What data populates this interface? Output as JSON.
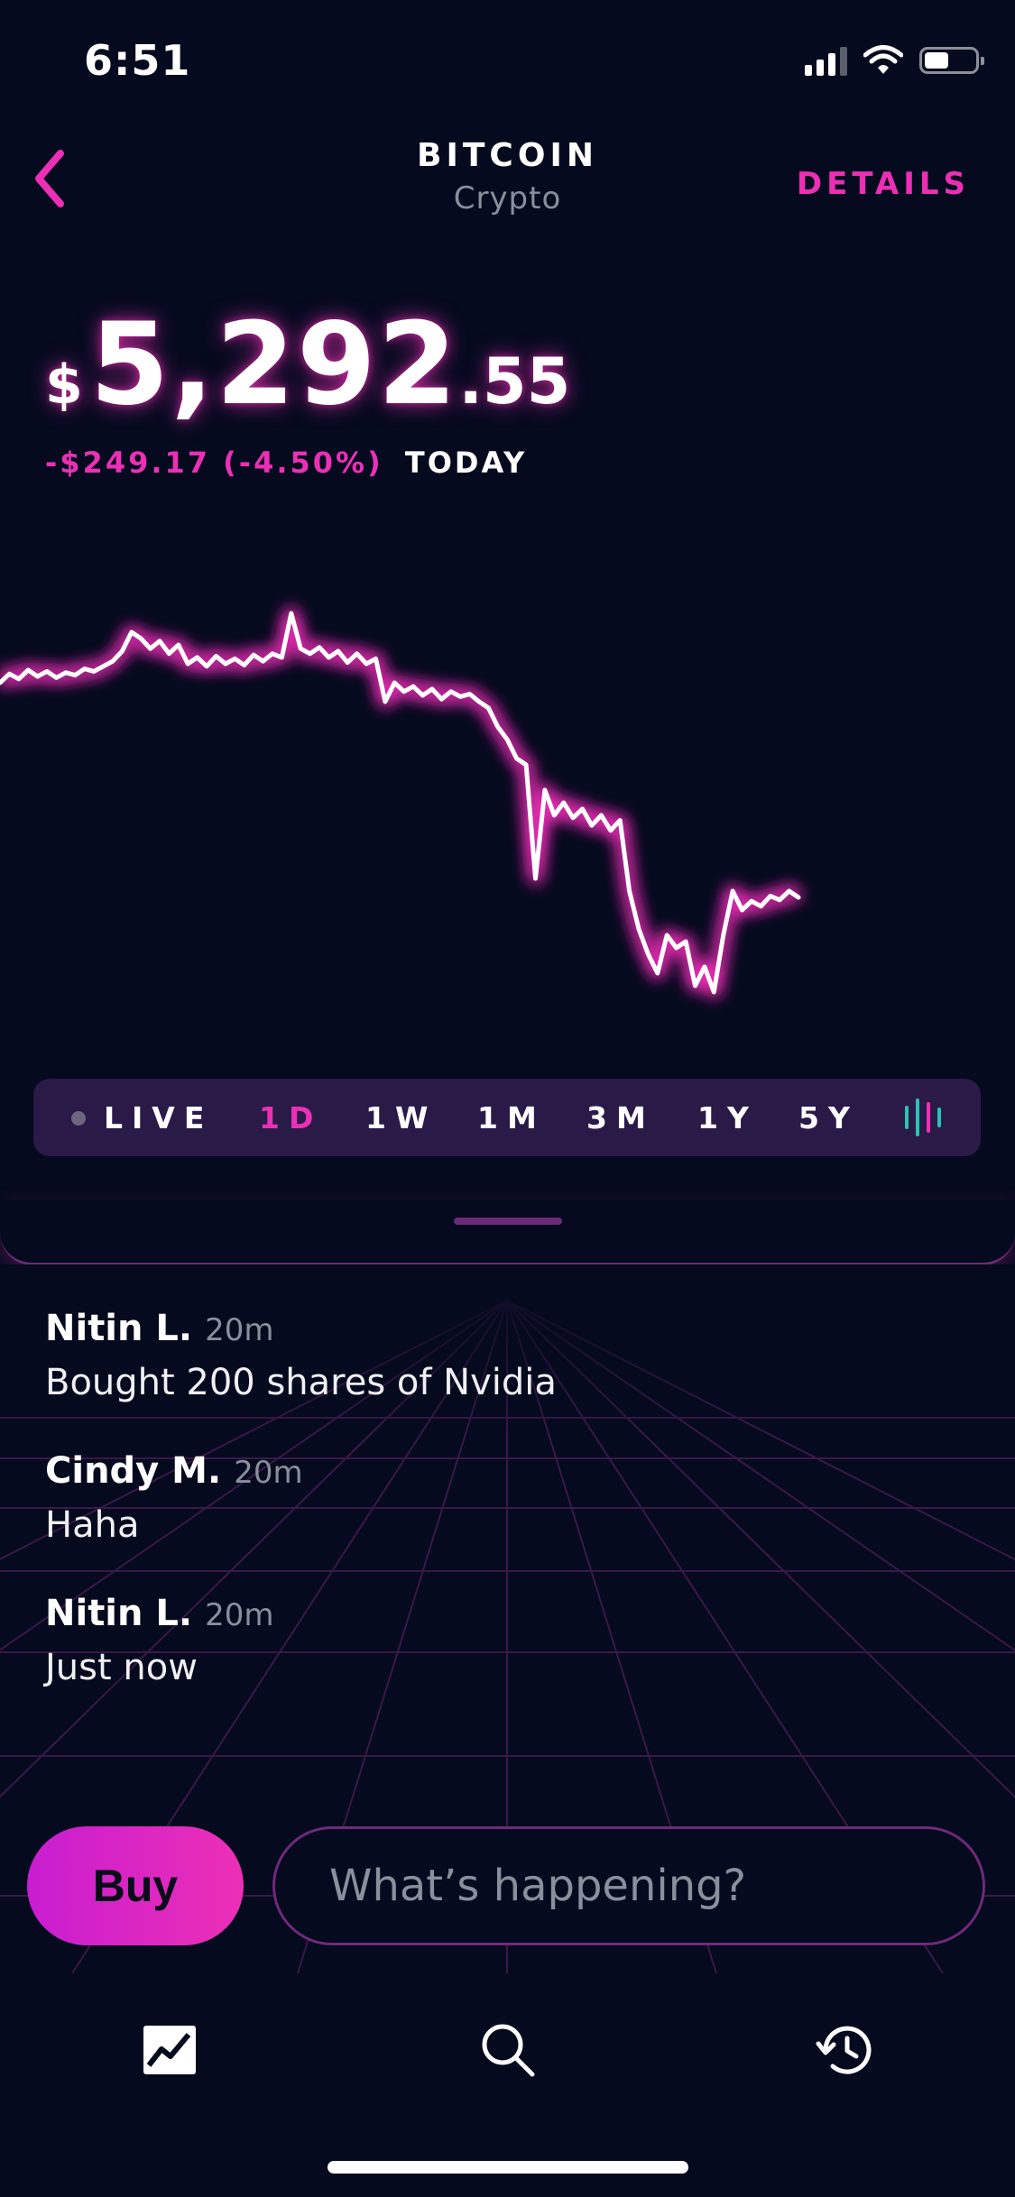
{
  "status_bar": {
    "time": "6:51"
  },
  "header": {
    "title": "BITCOIN",
    "subtitle": "Crypto",
    "details_label": "DETAILS"
  },
  "price": {
    "currency": "$",
    "whole": "5,292",
    "decimal": ".55",
    "change_amount": "-$249.17",
    "change_percent": "(-4.50%)",
    "change_period": "TODAY"
  },
  "chart_data": {
    "type": "line",
    "y_label": "",
    "values": [
      5405,
      5412,
      5408,
      5415,
      5410,
      5414,
      5409,
      5413,
      5411,
      5416,
      5414,
      5418,
      5422,
      5430,
      5445,
      5440,
      5432,
      5438,
      5428,
      5435,
      5420,
      5425,
      5418,
      5426,
      5420,
      5424,
      5419,
      5427,
      5422,
      5428,
      5425,
      5460,
      5432,
      5428,
      5433,
      5425,
      5430,
      5421,
      5428,
      5420,
      5424,
      5390,
      5405,
      5398,
      5402,
      5395,
      5400,
      5392,
      5398,
      5394,
      5396,
      5390,
      5385,
      5370,
      5360,
      5345,
      5340,
      5250,
      5320,
      5300,
      5310,
      5298,
      5305,
      5292,
      5300,
      5288,
      5296,
      5240,
      5210,
      5190,
      5175,
      5205,
      5195,
      5200,
      5165,
      5180,
      5160,
      5205,
      5240,
      5225,
      5232,
      5228,
      5236,
      5233,
      5240,
      5235
    ],
    "colors": {
      "line": "#ffffff",
      "glow": "#ec2fb5"
    }
  },
  "ranges": [
    {
      "label": "LIVE",
      "active": false
    },
    {
      "label": "1D",
      "active": true
    },
    {
      "label": "1W",
      "active": false
    },
    {
      "label": "1M",
      "active": false
    },
    {
      "label": "3M",
      "active": false
    },
    {
      "label": "1Y",
      "active": false
    },
    {
      "label": "5Y",
      "active": false
    }
  ],
  "feed": [
    {
      "name": "Nitin L.",
      "time": "20m",
      "message": "Bought 200 shares of Nvidia"
    },
    {
      "name": "Cindy M.",
      "time": "20m",
      "message": "Haha"
    },
    {
      "name": "Nitin L.",
      "time": "20m",
      "message": "Just now"
    }
  ],
  "compose": {
    "buy_label": "Buy",
    "placeholder": "What’s happening?"
  },
  "tabbar": {
    "icons": [
      "chart-icon",
      "search-icon",
      "history-icon"
    ]
  },
  "theme": {
    "accent": "#ec2fb5",
    "background": "#050a1e",
    "panel": "#2a1a48"
  }
}
